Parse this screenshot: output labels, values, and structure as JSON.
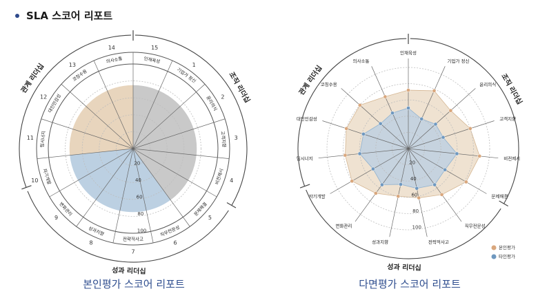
{
  "page": {
    "title": "SLA 스코어 리포트"
  },
  "colors": {
    "self": "#e8d5bd",
    "self_stroke": "#d5b692",
    "self_dot": "#d9a77d",
    "other": "#bcd0e2",
    "other_stroke": "#8fb1cf",
    "other_dot": "#6f98bf",
    "org": "#c9c9c9",
    "caption": "#2f4e8f"
  },
  "chart_data": [
    {
      "type": "radar-bar",
      "caption": "본인평가 스코어 리포트",
      "axes": [
        "인재육성",
        "기업가 정신",
        "윤리의식",
        "고객지향",
        "비전제시",
        "문제해결",
        "직무전문성",
        "전략적사고",
        "성과지향",
        "변화관리",
        "자기개발",
        "팀시너지",
        "대인민감성",
        "코칭수용",
        "의사소통"
      ],
      "axis_numbers": [
        "15",
        "1",
        "2",
        "3",
        "4",
        "5",
        "6",
        "7",
        "8",
        "9",
        "10",
        "11",
        "12",
        "13",
        "14"
      ],
      "groups": [
        {
          "name": "관계 리더십",
          "axes": [
            12,
            13,
            14
          ]
        },
        {
          "name": "조직 리더십",
          "axes": [
            0,
            1,
            2,
            3,
            4
          ]
        },
        {
          "name": "성과 리더십",
          "axes": [
            5,
            6,
            7,
            8,
            9,
            10,
            11
          ]
        }
      ],
      "radial_ticks": [
        "20",
        "40",
        "60",
        "80",
        "100"
      ],
      "rmax": 100,
      "values": [
        75,
        75,
        75,
        75,
        75,
        75,
        75,
        75,
        75,
        75,
        75,
        75,
        75,
        75,
        75
      ],
      "sector_colors": [
        "org",
        "org",
        "org",
        "org",
        "org",
        "org",
        "other",
        "other",
        "other",
        "other",
        "other",
        "self",
        "self",
        "self",
        "self"
      ]
    },
    {
      "type": "radar",
      "caption": "다면평가 스코어 리포트",
      "axes": [
        "인재육성",
        "기업가 정신",
        "윤리의식",
        "고객지향",
        "비전제시",
        "문제해결",
        "직무전문성",
        "전략적사고",
        "성과지향",
        "변화관리",
        "자기개발",
        "팀시너지",
        "대인민감성",
        "코칭수용",
        "의사소통"
      ],
      "groups": [
        {
          "name": "관계 리더십"
        },
        {
          "name": "조직 리더십"
        },
        {
          "name": "성과 리더십"
        }
      ],
      "radial_ticks": [
        "20",
        "40",
        "60",
        "80",
        "100"
      ],
      "rmax": 100,
      "series": [
        {
          "name": "본인평가",
          "values": [
            72,
            78,
            70,
            80,
            88,
            82,
            70,
            62,
            60,
            68,
            80,
            78,
            80,
            80,
            70
          ]
        },
        {
          "name": "타인평가",
          "values": [
            50,
            40,
            45,
            45,
            60,
            52,
            55,
            50,
            45,
            55,
            50,
            60,
            58,
            46,
            48
          ]
        }
      ]
    }
  ]
}
